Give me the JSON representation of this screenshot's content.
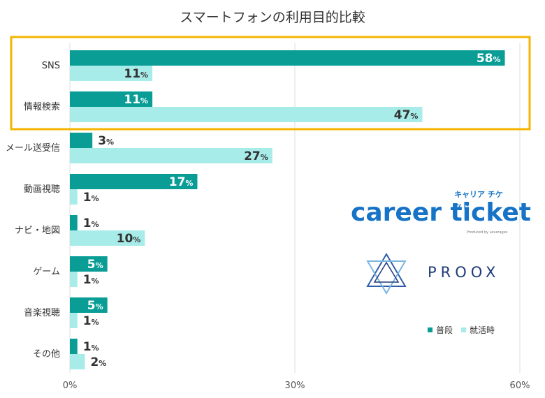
{
  "title": "スマートフォンの利用目的比較",
  "chart_data": {
    "type": "bar",
    "orientation": "horizontal",
    "title": "スマートフォンの利用目的比較",
    "categories": [
      "SNS",
      "情報検索",
      "メール送受信",
      "動画視聴",
      "ナビ・地図",
      "ゲーム",
      "音楽視聴",
      "その他"
    ],
    "series": [
      {
        "name": "普段",
        "color": "#0a9d96",
        "values": [
          58,
          11,
          3,
          17,
          1,
          5,
          5,
          1
        ]
      },
      {
        "name": "就活時",
        "color": "#a8ecea",
        "values": [
          11,
          47,
          27,
          1,
          10,
          1,
          1,
          2
        ]
      }
    ],
    "xlim": [
      0,
      60
    ],
    "xticks": [
      "0%",
      "30%",
      "60%"
    ],
    "value_suffix": "%",
    "grid": true,
    "legend_position": "bottom-right",
    "highlight": {
      "categories": [
        "SNS",
        "情報検索"
      ],
      "color": "#f4b400"
    }
  },
  "logos": {
    "career_kana": "キャリア チケット",
    "career": "career ticket",
    "career_tagline": "Produced by Leverages",
    "proox": "PROOX"
  }
}
